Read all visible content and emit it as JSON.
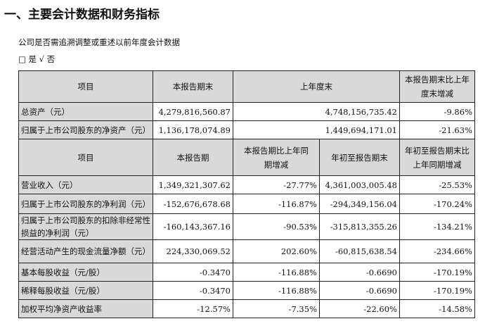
{
  "title": "一、主要会计数据和财务指标",
  "subtitle": "公司是否需追溯调整或重述以前年度会计数据",
  "option": "□ 是 √ 否",
  "table1": {
    "headers": [
      "项目",
      "本报告期末",
      "上年度末",
      "本报告期末比上年度末增减"
    ],
    "rows": [
      [
        "总资产（元）",
        "4,279,816,560.87",
        "4,748,156,735.42",
        "-9.86%"
      ],
      [
        "归属于上市公司股东的净资产（元）",
        "1,136,178,074.89",
        "1,449,694,171.01",
        "-21.63%"
      ]
    ]
  },
  "table2": {
    "headers": [
      "项目",
      "本报告期",
      "本报告期比上年同期增减",
      "年初至报告期末",
      "年初至报告期末比上年同期增减"
    ],
    "rows": [
      [
        "营业收入（元）",
        "1,349,321,307.62",
        "-27.77%",
        "4,361,003,005.48",
        "-25.53%"
      ],
      [
        "归属于上市公司股东的净利润（元）",
        "-152,676,678.68",
        "-116.87%",
        "-294,349,156.04",
        "-170.24%"
      ],
      [
        "归属于上市公司股东的扣除非经常性损益的净利润（元）",
        "-160,143,367.16",
        "-90.53%",
        "-315,813,355.26",
        "-134.21%"
      ],
      [
        "经营活动产生的现金流量净额（元）",
        "224,330,069.52",
        "202.60%",
        "-60,815,638.54",
        "-234.66%"
      ],
      [
        "基本每股收益（元/股）",
        "-0.3470",
        "-116.88%",
        "-0.6690",
        "-170.19%"
      ],
      [
        "稀释每股收益（元/股）",
        "-0.3470",
        "-116.88%",
        "-0.6690",
        "-170.19%"
      ],
      [
        "加权平均净资产收益率",
        "-12.57%",
        "-7.35%",
        "-22.60%",
        "-14.58%"
      ]
    ]
  }
}
